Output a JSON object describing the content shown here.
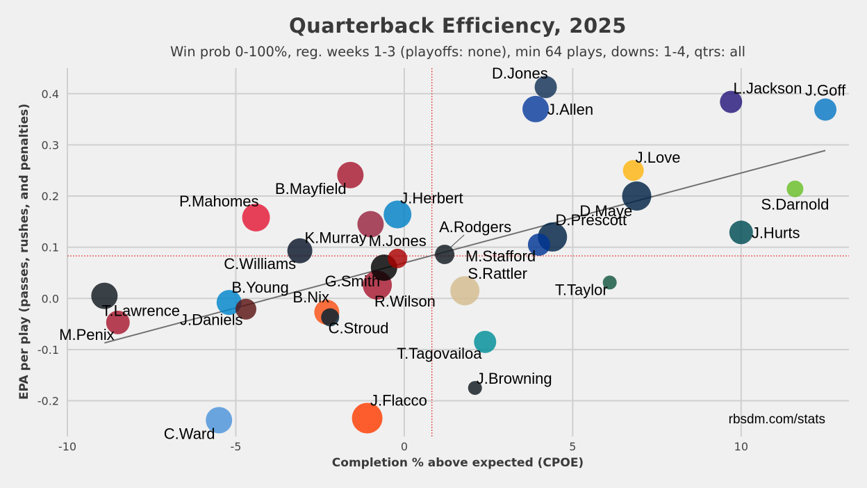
{
  "chart_data": {
    "type": "scatter",
    "title": "Quarterback Efficiency, 2025",
    "subtitle": "Win prob 0-100%, reg. weeks 1-3 (playoffs: none), min 64 plays, downs: 1-4, qtrs: all",
    "xlabel": "Completion % above expected (CPOE)",
    "ylabel": "EPA per play (passes, rushes, and penalties)",
    "xlim": [
      -10,
      13.2
    ],
    "ylim": [
      -0.27,
      0.45
    ],
    "xticks": [
      -10,
      -5,
      0,
      5,
      10
    ],
    "xtick_labels": [
      "-10",
      "-5",
      "0",
      "5",
      "10"
    ],
    "yticks": [
      -0.2,
      -0.1,
      0.0,
      0.1,
      0.2,
      0.3,
      0.4
    ],
    "ytick_labels": [
      "-0.2",
      "-0.1",
      "0.0",
      "0.1",
      "0.2",
      "0.3",
      "0.4"
    ],
    "grid": true,
    "mean_x": 0.82,
    "mean_y": 0.083,
    "trendline": {
      "x": [
        -8.9,
        12.5
      ],
      "y": [
        -0.087,
        0.289
      ]
    },
    "source": "rbsdm.com/stats",
    "points": [
      {
        "name": "D.Jones",
        "x": 4.2,
        "y": 0.413,
        "color": "#143157",
        "size": 16,
        "label_pos": "left-up"
      },
      {
        "name": "J.Allen",
        "x": 3.9,
        "y": 0.37,
        "color": "#0a3c9c",
        "size": 19,
        "label_pos": "right"
      },
      {
        "name": "L.Jackson",
        "x": 9.7,
        "y": 0.384,
        "color": "#24177a",
        "size": 16,
        "label_pos": "right-up"
      },
      {
        "name": "J.Goff",
        "x": 12.5,
        "y": 0.369,
        "color": "#0877c4",
        "size": 16,
        "label_pos": "up"
      },
      {
        "name": "J.Love",
        "x": 6.8,
        "y": 0.25,
        "color": "#ffb511",
        "size": 15,
        "label_pos": "right-up"
      },
      {
        "name": "D.Maye",
        "x": 6.9,
        "y": 0.2,
        "color": "#002244",
        "size": 21,
        "label_pos": "left-down"
      },
      {
        "name": "S.Darnold",
        "x": 11.6,
        "y": 0.214,
        "color": "#69be28",
        "size": 12,
        "label_pos": "down"
      },
      {
        "name": "J.Hurts",
        "x": 10.0,
        "y": 0.129,
        "color": "#004c54",
        "size": 17,
        "label_pos": "right"
      },
      {
        "name": "D.Prescott",
        "x": 4.4,
        "y": 0.12,
        "color": "#002244",
        "size": 21,
        "label_pos": "right-up"
      },
      {
        "name": "M.Stafford",
        "x": 4.0,
        "y": 0.105,
        "color": "#003594",
        "size": 16,
        "label_pos": "left-down"
      },
      {
        "name": "A.Rodgers",
        "x": 1.2,
        "y": 0.086,
        "color": "#101820",
        "size": 14,
        "label_pos": "callout"
      },
      {
        "name": "T.Taylor",
        "x": 6.1,
        "y": 0.031,
        "color": "#125740",
        "size": 10,
        "label_pos": "left-down"
      },
      {
        "name": "S.Rattler",
        "x": 1.8,
        "y": 0.015,
        "color": "#d3bc8d",
        "size": 21,
        "label_pos": "right-up"
      },
      {
        "name": "T.Tagovailoa",
        "x": 2.4,
        "y": -0.085,
        "color": "#008e97",
        "size": 16,
        "label_pos": "left-down"
      },
      {
        "name": "J.Browning",
        "x": 2.1,
        "y": -0.175,
        "color": "#101820",
        "size": 10,
        "label_pos": "right-up"
      },
      {
        "name": "J.Flacco",
        "x": -1.1,
        "y": -0.234,
        "color": "#ff3c00",
        "size": 22,
        "label_pos": "right-up"
      },
      {
        "name": "C.Ward",
        "x": -5.5,
        "y": -0.238,
        "color": "#4b92db",
        "size": 19,
        "label_pos": "left-down"
      },
      {
        "name": "J.Herbert",
        "x": -0.2,
        "y": 0.164,
        "color": "#0080c6",
        "size": 20,
        "label_pos": "right-up"
      },
      {
        "name": "B.Mayfield",
        "x": -1.6,
        "y": 0.241,
        "color": "#a71930",
        "size": 19,
        "label_pos": "left-down"
      },
      {
        "name": "P.Mahomes",
        "x": -4.4,
        "y": 0.158,
        "color": "#e31837",
        "size": 20,
        "label_pos": "left-up"
      },
      {
        "name": "K.Murray",
        "x": -1.0,
        "y": 0.145,
        "color": "#97233f",
        "size": 19,
        "label_pos": "left-down"
      },
      {
        "name": "C.Williams",
        "x": -3.1,
        "y": 0.093,
        "color": "#0b162a",
        "size": 18,
        "label_pos": "left-down"
      },
      {
        "name": "M.Jones",
        "x": -0.2,
        "y": 0.078,
        "color": "#aa0000",
        "size": 14,
        "label_pos": "up"
      },
      {
        "name": "G.Smith",
        "x": -0.6,
        "y": 0.06,
        "color": "#000000",
        "size": 19,
        "label_pos": "left-down"
      },
      {
        "name": "R.Wilson",
        "x": -0.8,
        "y": 0.026,
        "color": "#a71930",
        "size": 21,
        "label_pos": "right-down"
      },
      {
        "name": "T.Lawrence",
        "x": -8.9,
        "y": 0.005,
        "color": "#101820",
        "size": 19,
        "label_pos": "right-down"
      },
      {
        "name": "B.Young",
        "x": -5.2,
        "y": -0.008,
        "color": "#0085ca",
        "size": 18,
        "label_pos": "right-up"
      },
      {
        "name": "J.Daniels",
        "x": -4.7,
        "y": -0.021,
        "color": "#5a1414",
        "size": 15,
        "label_pos": "left-down"
      },
      {
        "name": "B.Nix",
        "x": -2.3,
        "y": -0.027,
        "color": "#fb4f14",
        "size": 18,
        "label_pos": "left-up"
      },
      {
        "name": "C.Stroud",
        "x": -2.2,
        "y": -0.037,
        "color": "#03202f",
        "size": 13,
        "label_pos": "right-down"
      },
      {
        "name": "M.Penix",
        "x": -8.5,
        "y": -0.047,
        "color": "#a71930",
        "size": 17,
        "label_pos": "left-down"
      }
    ]
  }
}
